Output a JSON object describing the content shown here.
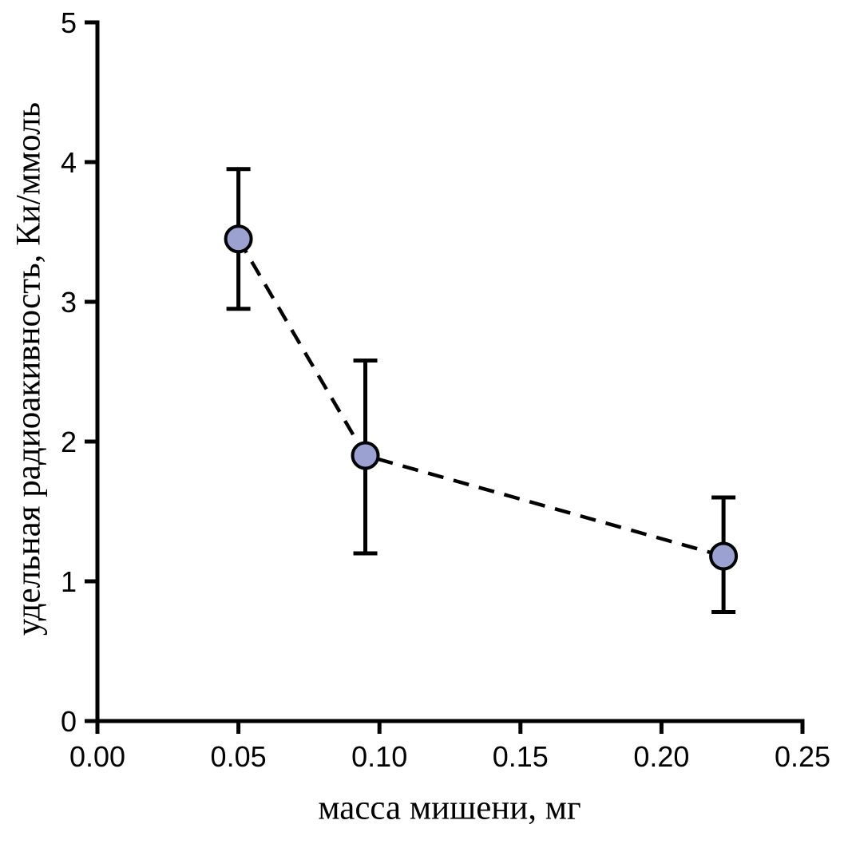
{
  "chart_data": {
    "type": "scatter",
    "title": "",
    "xlabel": "масса мишени, мг",
    "ylabel": "удельная радиоакивность, Ки/ммоль",
    "x": [
      0.05,
      0.095,
      0.222
    ],
    "y": [
      3.45,
      1.9,
      1.18
    ],
    "error_upper": [
      0.5,
      0.68,
      0.42
    ],
    "error_lower": [
      0.5,
      0.7,
      0.4
    ],
    "xlim": [
      0,
      0.25
    ],
    "ylim": [
      0,
      5
    ],
    "x_ticks": [
      0,
      0.05,
      0.1,
      0.15,
      0.2,
      0.25
    ],
    "x_tick_labels": [
      "0.00",
      "0.05",
      "0.10",
      "0.15",
      "0.20",
      "0.25"
    ],
    "y_ticks": [
      0,
      1,
      2,
      3,
      4,
      5
    ],
    "y_tick_labels": [
      "0",
      "1",
      "2",
      "3",
      "4",
      "5"
    ],
    "grid": false,
    "legend": null,
    "line_style": "dashed",
    "line_color": "#000000",
    "axis_color": "#000000",
    "marker_color": "#9ba1d0",
    "marker_edge_color": "#000000",
    "background_color": "#ffffff"
  }
}
